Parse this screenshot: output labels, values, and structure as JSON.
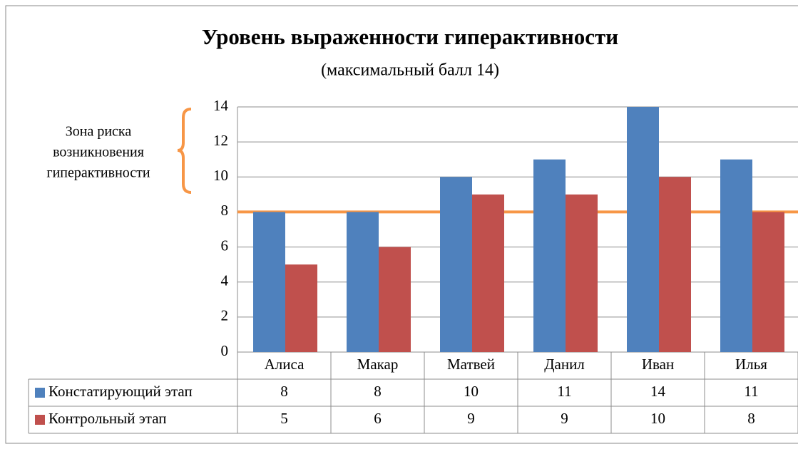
{
  "chart_data": {
    "type": "bar",
    "title": "Уровень выраженности гиперактивности",
    "subtitle": "(максимальный балл 14)",
    "categories": [
      "Алиса",
      "Макар",
      "Матвей",
      "Данил",
      "Иван",
      "Илья"
    ],
    "series": [
      {
        "name": "Констатирующий этап",
        "color": "#4f81bd",
        "values": [
          8,
          8,
          10,
          11,
          14,
          11
        ]
      },
      {
        "name": "Контрольный этап",
        "color": "#c0504d",
        "values": [
          5,
          6,
          9,
          9,
          10,
          8
        ]
      }
    ],
    "ylim": [
      0,
      14
    ],
    "yticks": [
      0,
      2,
      4,
      6,
      8,
      10,
      12,
      14
    ],
    "grid": true,
    "threshold": 8,
    "threshold_color": "#f79646",
    "annotation": [
      "Зона риска",
      "возникновения",
      "гиперактивности"
    ]
  }
}
